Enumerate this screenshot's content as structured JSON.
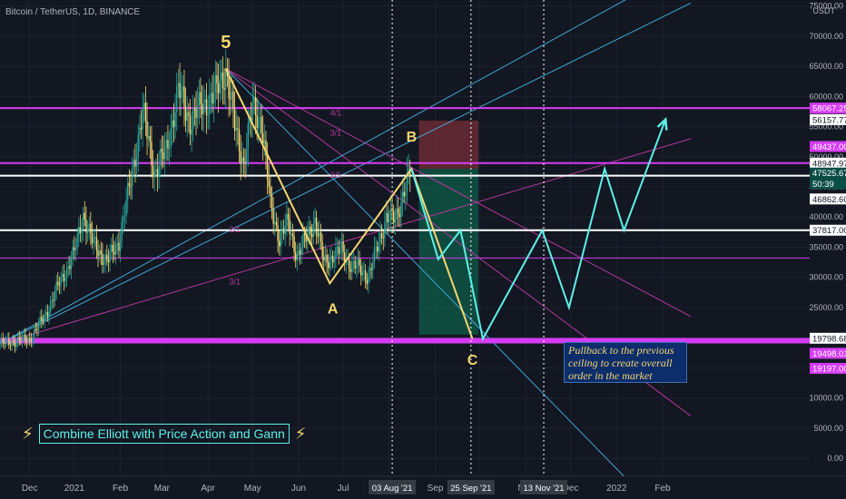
{
  "header": {
    "title": "Bitcoin / TetherUS, 1D, BINANCE"
  },
  "chart_data": {
    "type": "line",
    "title": "Bitcoin / TetherUS, 1D, BINANCE",
    "ylabel": "USDT",
    "ylim": [
      -3000,
      76000
    ],
    "xlim": [
      0,
      545
    ],
    "price_axis_ticks": [
      0,
      5000,
      10000,
      15000,
      20000,
      25000,
      30000,
      35000,
      40000,
      45000,
      50000,
      55000,
      60000,
      65000,
      70000,
      75000
    ],
    "price_axis_tick_labels": [
      "0.00",
      "5000.00",
      "10000.00",
      "15000.00",
      "20000.00",
      "25000.00",
      "30000.00",
      "35000.00",
      "40000.00",
      "45000.00",
      "50000.00",
      "55000.00",
      "60000.00",
      "65000.00",
      "70000.00",
      "75000.00"
    ],
    "time_axis": [
      {
        "label": "Dec",
        "day": 20
      },
      {
        "label": "2021",
        "day": 50
      },
      {
        "label": "Feb",
        "day": 81
      },
      {
        "label": "Mar",
        "day": 109
      },
      {
        "label": "Apr",
        "day": 140
      },
      {
        "label": "May",
        "day": 170
      },
      {
        "label": "Jun",
        "day": 201
      },
      {
        "label": "Jul",
        "day": 231
      },
      {
        "label": "Aug",
        "day": 262
      },
      {
        "label": "Sep",
        "day": 293
      },
      {
        "label": "Oct",
        "day": 323
      },
      {
        "label": "Nov",
        "day": 354
      },
      {
        "label": "Dec",
        "day": 384
      },
      {
        "label": "2022",
        "day": 415
      },
      {
        "label": "Feb",
        "day": 446
      }
    ],
    "time_markers": [
      {
        "label": "03 Aug '21",
        "day": 264
      },
      {
        "label": "25 Sep '21",
        "day": 317
      },
      {
        "label": "13 Nov '21",
        "day": 366
      }
    ],
    "price_series": {
      "name": "BTCUSDT",
      "points": [
        {
          "day": 0,
          "price": 19000
        },
        {
          "day": 10,
          "price": 19400
        },
        {
          "day": 20,
          "price": 19800
        },
        {
          "day": 30,
          "price": 23500
        },
        {
          "day": 40,
          "price": 29000
        },
        {
          "day": 50,
          "price": 34000
        },
        {
          "day": 56,
          "price": 40500
        },
        {
          "day": 62,
          "price": 36000
        },
        {
          "day": 72,
          "price": 32500
        },
        {
          "day": 80,
          "price": 36000
        },
        {
          "day": 88,
          "price": 46000
        },
        {
          "day": 96,
          "price": 57500
        },
        {
          "day": 104,
          "price": 47500
        },
        {
          "day": 112,
          "price": 51000
        },
        {
          "day": 120,
          "price": 61000
        },
        {
          "day": 128,
          "price": 56000
        },
        {
          "day": 136,
          "price": 58500
        },
        {
          "day": 145,
          "price": 60500
        },
        {
          "day": 152,
          "price": 64500
        },
        {
          "day": 158,
          "price": 55000
        },
        {
          "day": 164,
          "price": 49000
        },
        {
          "day": 170,
          "price": 58000
        },
        {
          "day": 176,
          "price": 56000
        },
        {
          "day": 182,
          "price": 42000
        },
        {
          "day": 188,
          "price": 36500
        },
        {
          "day": 194,
          "price": 39000
        },
        {
          "day": 200,
          "price": 33500
        },
        {
          "day": 206,
          "price": 36500
        },
        {
          "day": 212,
          "price": 39500
        },
        {
          "day": 218,
          "price": 32500
        },
        {
          "day": 224,
          "price": 33500
        },
        {
          "day": 230,
          "price": 34500
        },
        {
          "day": 236,
          "price": 32000
        },
        {
          "day": 242,
          "price": 31500
        },
        {
          "day": 248,
          "price": 30000
        },
        {
          "day": 254,
          "price": 35000
        },
        {
          "day": 260,
          "price": 40000
        },
        {
          "day": 266,
          "price": 39500
        },
        {
          "day": 272,
          "price": 44500
        },
        {
          "day": 276,
          "price": 47000
        }
      ]
    },
    "elliott_labels": [
      {
        "label": "5",
        "day": 152,
        "price": 68000
      },
      {
        "label": "A",
        "day": 224,
        "price": 24000
      },
      {
        "label": "B",
        "day": 277,
        "price": 52500
      },
      {
        "label": "C",
        "day": 318,
        "price": 15500
      }
    ],
    "elliott_path": [
      {
        "day": 152,
        "price": 64600
      },
      {
        "day": 222,
        "price": 29000
      },
      {
        "day": 277,
        "price": 48000
      },
      {
        "day": 318,
        "price": 19800
      }
    ],
    "projection_path": [
      {
        "day": 277,
        "price": 48000
      },
      {
        "day": 295,
        "price": 33000
      },
      {
        "day": 310,
        "price": 37800
      },
      {
        "day": 325,
        "price": 19800
      },
      {
        "day": 365,
        "price": 37800
      },
      {
        "day": 383,
        "price": 25000
      },
      {
        "day": 407,
        "price": 48000
      },
      {
        "day": 420,
        "price": 37800
      },
      {
        "day": 448,
        "price": 56200
      }
    ],
    "horizontal_levels": [
      {
        "price": 58067.25,
        "color": "#d63cf5",
        "style": "solid"
      },
      {
        "price": 48947.97,
        "color": "#d63cf5",
        "style": "solid"
      },
      {
        "price": 46862.6,
        "color": "#ffffff",
        "style": "solid"
      },
      {
        "price": 37817.0,
        "color": "#ffffff",
        "style": "solid"
      },
      {
        "price": 19798.68,
        "color": "#d63cf5",
        "style": "solid"
      },
      {
        "price": 19498.01,
        "color": "#d63cf5",
        "style": "solid"
      },
      {
        "price": 19197.0,
        "color": "#d63cf5",
        "style": "solid"
      },
      {
        "price": 33200,
        "color": "#d63cf5",
        "style": "thin"
      }
    ],
    "price_tags": [
      {
        "text": "58067.25",
        "price": 58067.25,
        "bg": "#d63cf5",
        "fg": "#ffffff"
      },
      {
        "text": "56157.77",
        "price": 56157.77,
        "bg": "#ffffff",
        "fg": "#131722"
      },
      {
        "text": "49437.00",
        "price": 51700,
        "bg": "#d63cf5",
        "fg": "#ffffff"
      },
      {
        "text": "48947.97",
        "price": 48947.97,
        "bg": "#ffffff",
        "fg": "#131722"
      },
      {
        "text": "47525.67",
        "price": 47300,
        "bg": "#0b4d47",
        "fg": "#ffffff"
      },
      {
        "text": "50:39",
        "price": 45500,
        "bg": "#0b4d47",
        "fg": "#ffffff"
      },
      {
        "text": "46862.60",
        "price": 43000,
        "bg": "#ffffff",
        "fg": "#131722"
      },
      {
        "text": "37817.00",
        "price": 37817,
        "bg": "#ffffff",
        "fg": "#131722"
      },
      {
        "text": "19798.68",
        "price": 19900,
        "bg": "#ffffff",
        "fg": "#131722"
      },
      {
        "text": "19498.01",
        "price": 17400,
        "bg": "#d63cf5",
        "fg": "#ffffff"
      },
      {
        "text": "19197.00",
        "price": 14900,
        "bg": "#d63cf5",
        "fg": "#ffffff"
      }
    ],
    "gann_labels": [
      {
        "label": "4/1",
        "day": 226,
        "price": 56800
      },
      {
        "label": "3/1",
        "day": 226,
        "price": 53500
      },
      {
        "label": "2/1",
        "day": 226,
        "price": 46500
      },
      {
        "label": "2/1",
        "day": 158,
        "price": 37500
      },
      {
        "label": "3/1",
        "day": 158,
        "price": 28800
      }
    ],
    "trend_lines": [
      {
        "from": {
          "day": 0,
          "price": 19000
        },
        "to": {
          "day": 465,
          "price": 75500
        },
        "color": "#3fa7d6"
      },
      {
        "from": {
          "day": 0,
          "price": 19000
        },
        "to": {
          "day": 465,
          "price": 53000
        },
        "color": "#b3389c"
      },
      {
        "from": {
          "day": 152,
          "price": 64600
        },
        "to": {
          "day": 465,
          "price": 23500
        },
        "color": "#b3389c"
      },
      {
        "from": {
          "day": 152,
          "price": 64600
        },
        "to": {
          "day": 465,
          "price": 7000
        },
        "color": "#b3389c"
      },
      {
        "from": {
          "day": 152,
          "price": 64600
        },
        "to": {
          "day": 420,
          "price": -3000
        },
        "color": "#3fa7d6"
      },
      {
        "from": {
          "day": 0,
          "price": 19000
        },
        "to": {
          "day": 465,
          "price": 82000
        },
        "color": "#3fa7d6"
      }
    ],
    "position_zone": {
      "start_day": 282,
      "end_day": 322,
      "entry": 48000,
      "stop": 56000,
      "target": 20500
    },
    "annotations": [
      {
        "text": "Pullback to the previous ceiling to create overall order in the market"
      },
      {
        "text": "Combine Elliott with Price Action and Gann"
      }
    ]
  },
  "note": {
    "line1": "Pullback to the previous",
    "line2": "ceiling to create overall",
    "line3": "order in the market"
  },
  "banner": {
    "bolt": "⚡",
    "text": "Combine Elliott with Price Action and Gann"
  },
  "colors": {
    "background": "#131722",
    "up_candle": "#26a69a",
    "elliott": "#f5d76e",
    "projection": "#5cf0e8",
    "magenta": "#d63cf5",
    "cyan_line": "#3fa7d6",
    "tag_bg": "#0b4d47",
    "green_zone": "#0f5c4a",
    "red_zone": "#6b2a35"
  }
}
